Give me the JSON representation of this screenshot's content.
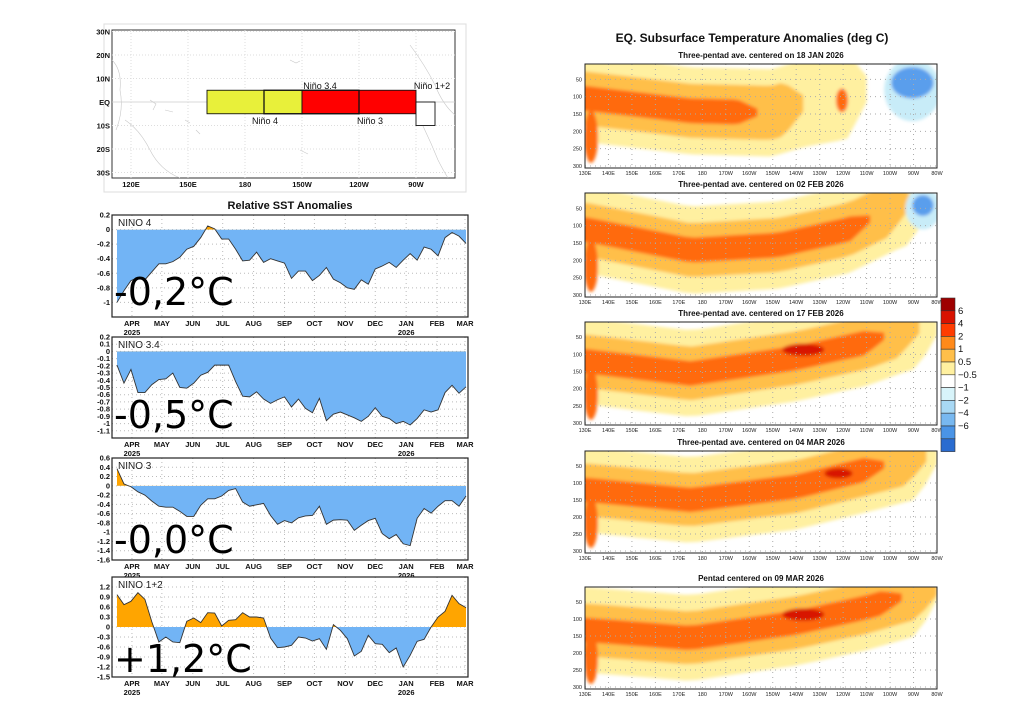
{
  "map": {
    "lat_labels": [
      "30N",
      "20N",
      "10N",
      "EQ",
      "10S",
      "20S",
      "30S"
    ],
    "lat_values": [
      30,
      20,
      10,
      0,
      -10,
      -20,
      -30
    ],
    "lon_labels": [
      "120E",
      "150E",
      "180",
      "150W",
      "120W",
      "90W"
    ],
    "lon_values": [
      120,
      150,
      180,
      210,
      240,
      270
    ],
    "regions": [
      {
        "name": "Niño 4",
        "lon": [
          160,
          210
        ],
        "lat": [
          -5,
          5
        ],
        "color": "#e8f03a"
      },
      {
        "name": "Niño 3.4",
        "lon": [
          190,
          240
        ],
        "lat": [
          -5,
          5
        ],
        "color": "none"
      },
      {
        "name": "Niño 3",
        "lon": [
          210,
          270
        ],
        "lat": [
          -5,
          5
        ],
        "color": "#ff0000"
      },
      {
        "name": "Niño 1+2",
        "lon": [
          270,
          280
        ],
        "lat": [
          -10,
          0
        ],
        "color": "#ffffff"
      }
    ]
  },
  "chart_data": [
    {
      "type": "area",
      "title": "Relative SST Anomalies",
      "positive_color": "#ffa500",
      "negative_color": "#72b4f5",
      "grid": true,
      "xlim": [
        "2025-03-12",
        "2026-03-04"
      ],
      "month_ticks": [
        {
          "date": "2025-04-01",
          "label": "APR",
          "year": "2025"
        },
        {
          "date": "2025-05-01",
          "label": "MAY"
        },
        {
          "date": "2025-06-01",
          "label": "JUN"
        },
        {
          "date": "2025-07-01",
          "label": "JUL"
        },
        {
          "date": "2025-08-01",
          "label": "AUG"
        },
        {
          "date": "2025-09-01",
          "label": "SEP"
        },
        {
          "date": "2025-10-01",
          "label": "OCT"
        },
        {
          "date": "2025-11-01",
          "label": "NOV"
        },
        {
          "date": "2025-12-01",
          "label": "DEC"
        },
        {
          "date": "2026-01-01",
          "label": "JAN",
          "year": "2026"
        },
        {
          "date": "2026-02-01",
          "label": "FEB"
        },
        {
          "date": "2026-03-01",
          "label": "MAR"
        }
      ],
      "x": [
        "2025-03-17",
        "2025-03-24",
        "2025-03-31",
        "2025-04-07",
        "2025-04-14",
        "2025-04-21",
        "2025-04-28",
        "2025-05-05",
        "2025-05-12",
        "2025-05-19",
        "2025-05-26",
        "2025-06-02",
        "2025-06-09",
        "2025-06-16",
        "2025-06-23",
        "2025-06-30",
        "2025-07-07",
        "2025-07-14",
        "2025-07-21",
        "2025-07-28",
        "2025-08-04",
        "2025-08-11",
        "2025-08-18",
        "2025-08-25",
        "2025-09-01",
        "2025-09-08",
        "2025-09-15",
        "2025-09-22",
        "2025-09-29",
        "2025-10-06",
        "2025-10-13",
        "2025-10-20",
        "2025-10-27",
        "2025-11-03",
        "2025-11-10",
        "2025-11-17",
        "2025-11-24",
        "2025-12-01",
        "2025-12-08",
        "2025-12-15",
        "2025-12-22",
        "2025-12-29",
        "2026-01-05",
        "2026-01-12",
        "2026-01-19",
        "2026-01-26",
        "2026-02-02",
        "2026-02-09",
        "2026-02-16",
        "2026-02-23",
        "2026-03-02"
      ],
      "panels": [
        {
          "name": "NINO  4",
          "ylim": [
            -1.2,
            0.2
          ],
          "yticks": [
            0.2,
            0,
            -0.2,
            -0.4,
            -0.6,
            -0.8,
            -1
          ],
          "values": [
            -1.0,
            -0.84,
            -0.7,
            -0.66,
            -0.69,
            -0.58,
            -0.47,
            -0.47,
            -0.44,
            -0.38,
            -0.27,
            -0.23,
            -0.11,
            0.05,
            0.01,
            -0.13,
            -0.13,
            -0.27,
            -0.43,
            -0.42,
            -0.31,
            -0.45,
            -0.4,
            -0.43,
            -0.46,
            -0.67,
            -0.57,
            -0.57,
            -0.7,
            -0.63,
            -0.52,
            -0.68,
            -0.73,
            -0.8,
            -0.82,
            -0.69,
            -0.75,
            -0.54,
            -0.5,
            -0.45,
            -0.52,
            -0.42,
            -0.33,
            -0.42,
            -0.24,
            -0.27,
            -0.36,
            -0.11,
            -0.04,
            -0.09,
            -0.19
          ]
        },
        {
          "name": "NINO  3.4",
          "ylim": [
            -1.2,
            0.2
          ],
          "yticks": [
            0.2,
            0.1,
            0,
            -0.1,
            -0.2,
            -0.3,
            -0.4,
            -0.5,
            -0.6,
            -0.7,
            -0.8,
            -0.9,
            -1,
            -1.1
          ],
          "values": [
            -0.19,
            -0.44,
            -0.25,
            -0.57,
            -0.57,
            -0.46,
            -0.39,
            -0.38,
            -0.3,
            -0.5,
            -0.51,
            -0.44,
            -0.33,
            -0.29,
            -0.19,
            -0.19,
            -0.19,
            -0.42,
            -0.62,
            -0.63,
            -0.56,
            -0.66,
            -0.72,
            -0.67,
            -0.63,
            -0.77,
            -0.66,
            -0.79,
            -0.85,
            -0.65,
            -0.96,
            -0.87,
            -0.84,
            -0.88,
            -0.92,
            -0.97,
            -0.9,
            -0.78,
            -0.9,
            -0.93,
            -1.0,
            -0.97,
            -1.02,
            -0.93,
            -0.81,
            -0.84,
            -0.81,
            -0.57,
            -0.47,
            -0.58,
            -0.49
          ]
        },
        {
          "name": "NINO  3",
          "ylim": [
            -1.6,
            0.6
          ],
          "yticks": [
            0.6,
            0.4,
            0.2,
            0,
            -0.2,
            -0.4,
            -0.6,
            -0.8,
            -1,
            -1.2,
            -1.4,
            -1.6
          ],
          "values": [
            0.37,
            0.04,
            -0.02,
            -0.13,
            -0.2,
            -0.33,
            -0.44,
            -0.46,
            -0.46,
            -0.55,
            -0.66,
            -0.66,
            -0.42,
            -0.28,
            -0.28,
            -0.22,
            -0.1,
            -0.06,
            -0.35,
            -0.44,
            -0.41,
            -0.38,
            -0.64,
            -0.83,
            -0.75,
            -0.8,
            -0.69,
            -0.65,
            -0.64,
            -0.44,
            -0.83,
            -0.74,
            -0.73,
            -0.74,
            -0.96,
            -0.85,
            -0.75,
            -0.7,
            -1.03,
            -1.14,
            -1.05,
            -1.25,
            -1.29,
            -0.7,
            -0.49,
            -0.59,
            -0.44,
            -0.32,
            -0.32,
            -0.44,
            -0.22
          ]
        },
        {
          "name": "NINO  1+2",
          "ylim": [
            -1.5,
            1.5
          ],
          "yticks": [
            1.2,
            0.9,
            0.6,
            0.3,
            0,
            -0.3,
            -0.6,
            -0.9,
            -1.2,
            -1.5
          ],
          "values": [
            0.97,
            0.67,
            0.77,
            1.03,
            0.83,
            0.15,
            -0.45,
            -0.3,
            -0.45,
            -0.47,
            0.17,
            0.27,
            0.13,
            0.43,
            0.42,
            0.03,
            0.2,
            0.22,
            0.43,
            0.3,
            0.3,
            0.27,
            -0.33,
            -0.62,
            -0.6,
            -0.55,
            -0.3,
            -0.33,
            -0.42,
            -0.35,
            -0.67,
            0.07,
            -0.1,
            -0.35,
            -0.87,
            -0.73,
            -0.25,
            -0.5,
            -0.52,
            -0.77,
            -0.63,
            -1.2,
            -0.85,
            -0.43,
            -0.37,
            0.0,
            0.3,
            0.47,
            0.95,
            0.7,
            0.58
          ]
        }
      ]
    },
    {
      "type": "heatmap",
      "title": "EQ. Subsurface Temperature Anomalies (deg C)",
      "xticks": [
        "130E",
        "140E",
        "150E",
        "160E",
        "170E",
        "180",
        "170W",
        "160W",
        "150W",
        "140W",
        "130W",
        "120W",
        "110W",
        "100W",
        "90W",
        "80W"
      ],
      "yticks": [
        "50",
        "100",
        "150",
        "200",
        "250",
        "300"
      ],
      "panels": [
        {
          "title": "Three-pentad ave. centered on 18 JAN 2026"
        },
        {
          "title": "Three-pentad ave. centered on 02 FEB 2026"
        },
        {
          "title": "Three-pentad ave. centered on 17 FEB 2026"
        },
        {
          "title": "Three-pentad ave. centered on 04 MAR 2026"
        },
        {
          "title": "Pentad centered on 09 MAR 2026"
        }
      ],
      "colorbar": {
        "labels": [
          "6",
          "4",
          "2",
          "1",
          "0.5",
          "−0.5",
          "−1",
          "−2",
          "−4",
          "−6"
        ],
        "colors": [
          "#9e0000",
          "#d81200",
          "#ff3c00",
          "#ff8a1a",
          "#ffbf4a",
          "#fff0a0",
          "#ffffff",
          "#d8f4fa",
          "#a8d8f4",
          "#78b8f0",
          "#4a94e6",
          "#2a6cd0"
        ]
      }
    }
  ],
  "overlay_labels": [
    "-0,2°C",
    "-0,5°C",
    "-0,0°C",
    "+1,2°C"
  ]
}
